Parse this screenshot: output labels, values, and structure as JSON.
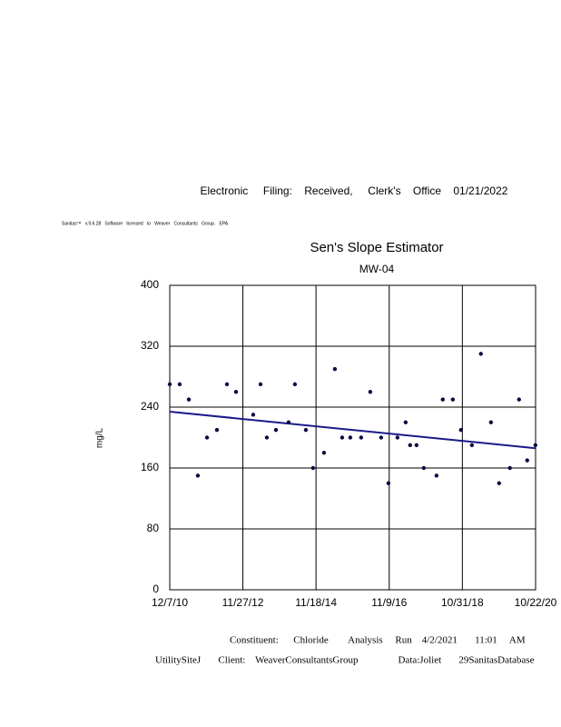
{
  "header": {
    "filing": "Electronic     Filing:    Received,     Clerk's    Office    01/21/2022",
    "software": "Sanitas™   v.9.6.28   Software   licensed   to   Weaver   Consultants   Group.   EPA"
  },
  "chart_data": {
    "type": "scatter",
    "title": "Sen's Slope Estimator",
    "subtitle": "MW-04",
    "y_label": "mg/L",
    "x": [
      "12/7/10",
      "3/15/11",
      "6/13/11",
      "9/10/11",
      "12/9/11",
      "3/16/12",
      "6/23/12",
      "9/20/12",
      "3/9/13",
      "5/20/13",
      "7/21/13",
      "10/19/13",
      "2/21/14",
      "4/24/14",
      "8/10/14",
      "10/20/14",
      "2/5/15",
      "5/23/15",
      "8/3/15",
      "10/22/15",
      "2/6/16",
      "5/6/16",
      "8/21/16",
      "11/1/16",
      "1/29/17",
      "4/20/17",
      "6/3/17",
      "8/5/17",
      "10/16/17",
      "2/18/18",
      "4/21/18",
      "7/29/18",
      "10/17/18",
      "2/2/19",
      "5/2/19",
      "8/9/19",
      "10/28/19",
      "2/12/20",
      "5/12/20",
      "7/31/20",
      "10/20/20"
    ],
    "values": [
      270,
      270,
      250,
      150,
      200,
      210,
      270,
      260,
      230,
      270,
      200,
      210,
      220,
      270,
      210,
      160,
      180,
      290,
      200,
      200,
      200,
      260,
      200,
      140,
      200,
      220,
      190,
      190,
      160,
      150,
      250,
      250,
      210,
      190,
      310,
      220,
      140,
      160,
      250,
      170,
      190
    ],
    "color": "#0a0a40",
    "trend_line": {
      "x": [
        "12/7/10",
        "10/22/20"
      ],
      "values": [
        234,
        186
      ],
      "color": "#1a1a8c"
    },
    "xlim": [
      "12/7/10",
      "10/22/20"
    ],
    "xticks": [
      "12/7/10",
      "11/27/12",
      "11/18/14",
      "11/9/16",
      "10/31/18",
      "10/22/20"
    ],
    "ylim": [
      0,
      400
    ],
    "yticks": [
      0,
      80,
      160,
      240,
      320,
      400
    ],
    "grid": true
  },
  "footer": {
    "line1": "Constituent:      Chloride        Analysis     Run    4/2/2021       11:01     AM",
    "line2": "UtilitySiteJ       Client:    WeaverConsultantsGroup                Data:Joliet       29SanitasDatabase"
  }
}
